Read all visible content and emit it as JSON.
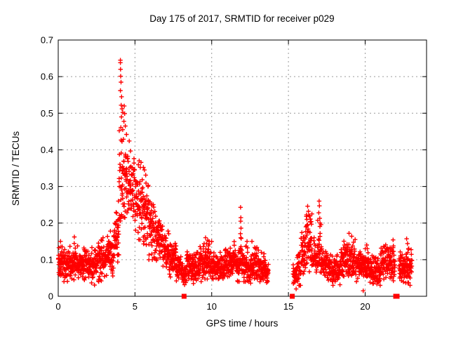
{
  "chart_data": {
    "type": "scatter",
    "title": "Day 175 of 2017, SRMTID for receiver p029",
    "xlabel": "GPS time / hours",
    "ylabel": "SRMTID / TECUs",
    "xlim": [
      0,
      24
    ],
    "ylim": [
      0,
      0.7
    ],
    "xticks": [
      {
        "v": 0,
        "label": "0"
      },
      {
        "v": 5,
        "label": "5"
      },
      {
        "v": 10,
        "label": "10"
      },
      {
        "v": 15,
        "label": "15"
      },
      {
        "v": 20,
        "label": "20"
      }
    ],
    "yticks": [
      {
        "v": 0.0,
        "label": "0"
      },
      {
        "v": 0.1,
        "label": "0.1"
      },
      {
        "v": 0.2,
        "label": "0.2"
      },
      {
        "v": 0.3,
        "label": "0.3"
      },
      {
        "v": 0.4,
        "label": "0.4"
      },
      {
        "v": 0.5,
        "label": "0.5"
      },
      {
        "v": 0.6,
        "label": "0.6"
      },
      {
        "v": 0.7,
        "label": "0.7"
      }
    ],
    "grid": true,
    "legend": null,
    "marker": "plus",
    "colors": {
      "points": "#ff0000",
      "grid": "#9a9a9a",
      "axis": "#000000",
      "background": "#ffffff",
      "text": "#000000"
    },
    "max_point": {
      "x": 4.05,
      "y": 0.645
    },
    "data_gaps": [
      [
        13.7,
        15.3
      ],
      [
        21.95,
        22.2
      ]
    ],
    "zero_square_markers_x": [
      8.2,
      15.25,
      21.99,
      22.08
    ],
    "points_per_hour": 115,
    "band_segments": [
      [
        0.0,
        0.5,
        0.04,
        0.135
      ],
      [
        0.5,
        1.1,
        0.03,
        0.15
      ],
      [
        1.1,
        2.0,
        0.035,
        0.14
      ],
      [
        2.0,
        2.6,
        0.025,
        0.145
      ],
      [
        2.6,
        3.2,
        0.04,
        0.155
      ],
      [
        3.2,
        3.6,
        0.05,
        0.175
      ],
      [
        3.6,
        3.95,
        0.07,
        0.24
      ],
      [
        3.95,
        4.4,
        0.16,
        0.46
      ],
      [
        4.4,
        5.0,
        0.18,
        0.43
      ],
      [
        5.0,
        5.5,
        0.15,
        0.37
      ],
      [
        5.5,
        5.9,
        0.13,
        0.33
      ],
      [
        5.9,
        6.3,
        0.1,
        0.28
      ],
      [
        6.3,
        6.8,
        0.08,
        0.23
      ],
      [
        6.8,
        7.2,
        0.06,
        0.19
      ],
      [
        7.2,
        7.7,
        0.05,
        0.15
      ],
      [
        7.7,
        8.1,
        0.035,
        0.12
      ],
      [
        8.1,
        8.35,
        0.03,
        0.09
      ],
      [
        8.35,
        9.2,
        0.035,
        0.125
      ],
      [
        9.2,
        10.0,
        0.04,
        0.15
      ],
      [
        10.0,
        10.8,
        0.035,
        0.12
      ],
      [
        10.8,
        11.4,
        0.04,
        0.14
      ],
      [
        11.4,
        11.6,
        0.05,
        0.16
      ],
      [
        11.6,
        11.8,
        0.04,
        0.13
      ],
      [
        11.8,
        12.0,
        0.05,
        0.16
      ],
      [
        12.0,
        12.35,
        0.04,
        0.15
      ],
      [
        12.35,
        12.75,
        0.035,
        0.125
      ],
      [
        12.75,
        13.05,
        0.04,
        0.145
      ],
      [
        13.05,
        13.45,
        0.035,
        0.12
      ],
      [
        13.45,
        13.7,
        0.03,
        0.1
      ],
      [
        15.3,
        15.55,
        0.02,
        0.09
      ],
      [
        15.55,
        15.8,
        0.03,
        0.13
      ],
      [
        15.8,
        16.1,
        0.05,
        0.19
      ],
      [
        16.1,
        16.55,
        0.06,
        0.225
      ],
      [
        16.55,
        16.9,
        0.05,
        0.16
      ],
      [
        16.9,
        17.15,
        0.06,
        0.21
      ],
      [
        17.15,
        17.6,
        0.045,
        0.14
      ],
      [
        17.6,
        18.4,
        0.03,
        0.115
      ],
      [
        18.4,
        19.35,
        0.04,
        0.155
      ],
      [
        19.35,
        20.2,
        0.04,
        0.13
      ],
      [
        20.2,
        21.0,
        0.03,
        0.115
      ],
      [
        21.0,
        21.95,
        0.04,
        0.145
      ],
      [
        22.2,
        23.05,
        0.03,
        0.13
      ]
    ],
    "notable_points": [
      [
        4.05,
        0.645
      ],
      [
        4.05,
        0.638
      ],
      [
        4.06,
        0.62
      ],
      [
        4.07,
        0.601
      ],
      [
        4.09,
        0.585
      ],
      [
        4.05,
        0.562
      ],
      [
        4.13,
        0.545
      ],
      [
        4.1,
        0.522
      ],
      [
        4.16,
        0.512
      ],
      [
        4.3,
        0.52
      ],
      [
        4.21,
        0.502
      ],
      [
        4.33,
        0.499
      ],
      [
        4.12,
        0.49
      ],
      [
        4.28,
        0.478
      ],
      [
        4.08,
        0.461
      ],
      [
        4.2,
        0.455
      ],
      [
        4.37,
        0.465
      ],
      [
        4.45,
        0.442
      ],
      [
        3.98,
        0.3
      ],
      [
        3.92,
        0.26
      ],
      [
        5.55,
        0.352
      ],
      [
        5.62,
        0.345
      ],
      [
        5.7,
        0.331
      ],
      [
        5.85,
        0.3
      ],
      [
        11.88,
        0.243
      ],
      [
        11.9,
        0.215
      ],
      [
        11.89,
        0.205
      ],
      [
        11.91,
        0.186
      ],
      [
        11.87,
        0.171
      ],
      [
        11.92,
        0.158
      ],
      [
        9.6,
        0.16
      ],
      [
        9.74,
        0.153
      ],
      [
        12.62,
        0.15
      ],
      [
        16.25,
        0.246
      ],
      [
        16.3,
        0.232
      ],
      [
        16.33,
        0.221
      ],
      [
        16.2,
        0.21
      ],
      [
        16.42,
        0.204
      ],
      [
        16.5,
        0.197
      ],
      [
        17.0,
        0.26
      ],
      [
        17.02,
        0.247
      ],
      [
        16.98,
        0.228
      ],
      [
        17.04,
        0.213
      ],
      [
        17.06,
        0.2
      ],
      [
        18.95,
        0.172
      ],
      [
        19.12,
        0.164
      ],
      [
        21.82,
        0.154
      ],
      [
        22.7,
        0.157
      ],
      [
        22.76,
        0.144
      ],
      [
        20.1,
        0.14
      ],
      [
        19.87,
        0.015
      ],
      [
        1.05,
        0.162
      ],
      [
        2.92,
        0.16
      ],
      [
        3.4,
        0.178
      ],
      [
        0.15,
        0.15
      ]
    ]
  }
}
